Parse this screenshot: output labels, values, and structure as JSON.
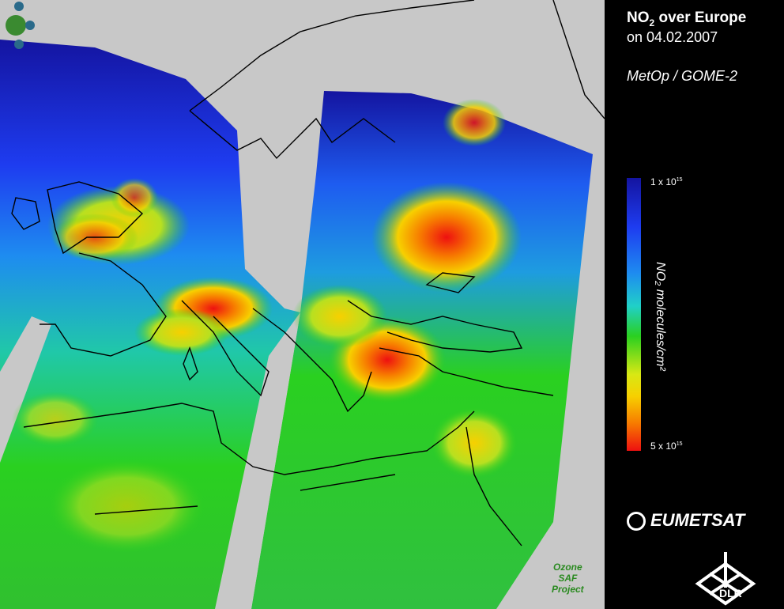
{
  "title": {
    "prefix": "NO",
    "sub": "2",
    "suffix": " over Europe"
  },
  "date_line": "on 04.02.2007",
  "instrument": "MetOp / GOME-2",
  "colorbar": {
    "max_label_prefix": "1 x 10",
    "max_label_exp": "15",
    "min_label_prefix": "5 x 10",
    "min_label_exp": "15",
    "unit_label": "NO₂ molecules/cm²",
    "top_value": 1000000000000000.0,
    "bottom_value": 5000000000000000.0,
    "colors": [
      "#1414a0",
      "#1e3cf0",
      "#1e8cf0",
      "#20d0c8",
      "#2ad020",
      "#d8e814",
      "#f7d000",
      "#f77a00",
      "#ee1010"
    ]
  },
  "logos": {
    "eumetsat": "EUMETSAT",
    "dlr": "DLR",
    "ozone_saf": [
      "Ozone",
      "SAF",
      "Project"
    ]
  },
  "hotspots": [
    {
      "name": "benelux-ruhr",
      "level": 0.95
    },
    {
      "name": "po-valley",
      "level": 1.0
    },
    {
      "name": "moscow-region",
      "level": 1.0
    },
    {
      "name": "istanbul",
      "level": 0.95
    },
    {
      "name": "england",
      "level": 0.85
    }
  ]
}
